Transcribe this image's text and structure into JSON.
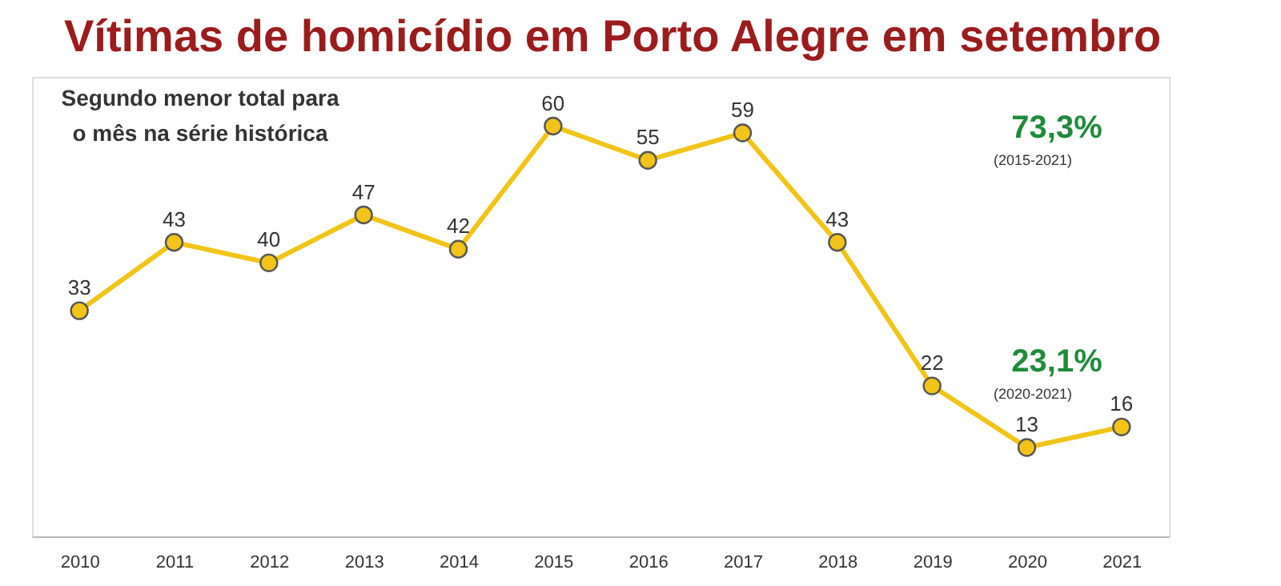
{
  "chart_data": {
    "type": "line",
    "title": "Vítimas de homicídio em Porto Alegre em setembro",
    "categories": [
      "2010",
      "2011",
      "2012",
      "2013",
      "2014",
      "2015",
      "2016",
      "2017",
      "2018",
      "2019",
      "2020",
      "2021"
    ],
    "series": [
      {
        "color": "#f2c418",
        "values": [
          33,
          43,
          40,
          47,
          42,
          60,
          55,
          59,
          43,
          22,
          13,
          16
        ]
      }
    ],
    "data_labels": true,
    "marker": "circle",
    "grid": false,
    "legend": false,
    "tick_labels": "x",
    "annotations": [
      "Segundo menor total para\no mês na série histórica",
      "73,3%",
      "(2015-2021)",
      "23,1%",
      "(2020-2021)"
    ]
  }
}
